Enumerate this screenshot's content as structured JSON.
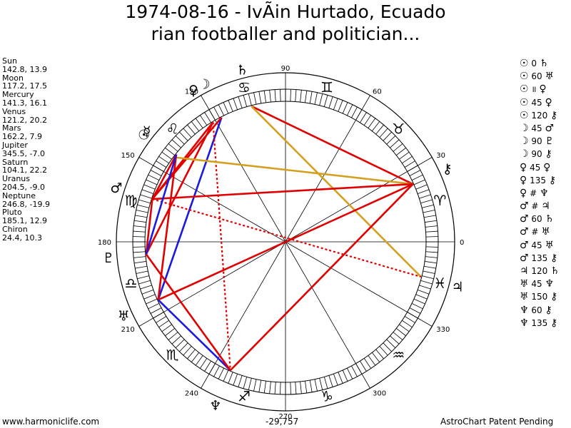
{
  "title_line1": "1974-08-16 - IvÃin Hurtado, Ecuado",
  "title_line2": "rian footballer and politician...",
  "planets": [
    {
      "name": "Sun",
      "coords": "142.8, 13.9",
      "glyph": "☉",
      "lon": 142.8
    },
    {
      "name": "Moon",
      "coords": "117.2, 17.5",
      "glyph": "☽",
      "lon": 117.2
    },
    {
      "name": "Mercury",
      "coords": "141.3, 16.1",
      "glyph": "☿",
      "lon": 141.3
    },
    {
      "name": "Venus",
      "coords": "121.2, 20.2",
      "glyph": "♀",
      "lon": 121.2
    },
    {
      "name": "Mars",
      "coords": "162.2, 7.9",
      "glyph": "♂",
      "lon": 162.2
    },
    {
      "name": "Jupiter",
      "coords": "345.5, -7.0",
      "glyph": "♃",
      "lon": 345.5
    },
    {
      "name": "Saturn",
      "coords": "104.1, 22.2",
      "glyph": "♄",
      "lon": 104.1
    },
    {
      "name": "Uranus",
      "coords": "204.5, -9.0",
      "glyph": "♅",
      "lon": 204.5
    },
    {
      "name": "Neptune",
      "coords": "246.8, -19.9",
      "glyph": "♆",
      "lon": 246.8
    },
    {
      "name": "Pluto",
      "coords": "185.1, 12.9",
      "glyph": "♇",
      "lon": 185.1
    },
    {
      "name": "Chiron",
      "coords": "24.4, 10.3",
      "glyph": "⚷",
      "lon": 24.4
    }
  ],
  "aspects": [
    {
      "p1": "☉",
      "val": "0",
      "p2": "♄"
    },
    {
      "p1": "☉",
      "val": "60",
      "p2": "♅"
    },
    {
      "p1": "☉",
      "val": "॥",
      "p2": "♀"
    },
    {
      "p1": "☉",
      "val": "45",
      "p2": "♀"
    },
    {
      "p1": "☉",
      "val": "120",
      "p2": "⚷"
    },
    {
      "p1": "☽",
      "val": "45",
      "p2": "♂"
    },
    {
      "p1": "☽",
      "val": "90",
      "p2": "♇"
    },
    {
      "p1": "☽",
      "val": "90",
      "p2": "⚷"
    },
    {
      "p1": "♀",
      "val": "45",
      "p2": "♀"
    },
    {
      "p1": "♀",
      "val": "135",
      "p2": "⚷"
    },
    {
      "p1": "♀",
      "val": "#",
      "p2": "♆"
    },
    {
      "p1": "♂",
      "val": "#",
      "p2": "♃"
    },
    {
      "p1": "♂",
      "val": "60",
      "p2": "♄"
    },
    {
      "p1": "♂",
      "val": "#",
      "p2": "♅"
    },
    {
      "p1": "♂",
      "val": "45",
      "p2": "♅"
    },
    {
      "p1": "♂",
      "val": "135",
      "p2": "⚷"
    },
    {
      "p1": "♃",
      "val": "120",
      "p2": "♄"
    },
    {
      "p1": "♅",
      "val": "45",
      "p2": "♆"
    },
    {
      "p1": "♅",
      "val": "150",
      "p2": "⚷"
    },
    {
      "p1": "♆",
      "val": "60",
      "p2": "⚷"
    },
    {
      "p1": "♆",
      "val": "135",
      "p2": "⚷"
    }
  ],
  "degree_labels": [
    "0",
    "30",
    "60",
    "90",
    "120",
    "150",
    "180",
    "210",
    "240",
    "270",
    "300",
    "330"
  ],
  "signs": [
    {
      "glyph": "♈",
      "lon": 15
    },
    {
      "glyph": "♉",
      "lon": 45
    },
    {
      "glyph": "♊",
      "lon": 75
    },
    {
      "glyph": "♋",
      "lon": 105
    },
    {
      "glyph": "♌",
      "lon": 135
    },
    {
      "glyph": "♍",
      "lon": 165
    },
    {
      "glyph": "♎",
      "lon": 195
    },
    {
      "glyph": "♏",
      "lon": 225
    },
    {
      "glyph": "♐",
      "lon": 255
    },
    {
      "glyph": "♑",
      "lon": 285
    },
    {
      "glyph": "♒",
      "lon": 315
    },
    {
      "glyph": "♓",
      "lon": 345
    }
  ],
  "aspect_lines": [
    {
      "a": 104.1,
      "b": 24.4,
      "color": "#e00000",
      "dash": false
    },
    {
      "a": 104.1,
      "b": 345.5,
      "color": "#d4a020",
      "dash": false
    },
    {
      "a": 117.2,
      "b": 204.5,
      "color": "#1a1ae0",
      "dash": false
    },
    {
      "a": 117.2,
      "b": 162.2,
      "color": "#e00000",
      "dash": false
    },
    {
      "a": 121.2,
      "b": 162.2,
      "color": "#e00000",
      "dash": false
    },
    {
      "a": 121.2,
      "b": 185.1,
      "color": "#e00000",
      "dash": false
    },
    {
      "a": 121.2,
      "b": 246.8,
      "color": "#e00000",
      "dash": true
    },
    {
      "a": 142.8,
      "b": 24.4,
      "color": "#d4a020",
      "dash": false
    },
    {
      "a": 141.3,
      "b": 204.5,
      "color": "#e00000",
      "dash": false
    },
    {
      "a": 141.3,
      "b": 162.2,
      "color": "#e00000",
      "dash": false
    },
    {
      "a": 162.2,
      "b": 24.4,
      "color": "#e00000",
      "dash": false
    },
    {
      "a": 162.2,
      "b": 345.5,
      "color": "#e00000",
      "dash": true
    },
    {
      "a": 162.2,
      "b": 185.1,
      "color": "#e00000",
      "dash": false
    },
    {
      "a": 204.5,
      "b": 24.4,
      "color": "#e00000",
      "dash": false
    },
    {
      "a": 246.8,
      "b": 24.4,
      "color": "#e00000",
      "dash": false
    },
    {
      "a": 246.8,
      "b": 204.5,
      "color": "#1a1ae0",
      "dash": false
    },
    {
      "a": 246.8,
      "b": 185.1,
      "color": "#e00000",
      "dash": false
    },
    {
      "a": 141.3,
      "b": 185.1,
      "color": "#1a1ae0",
      "dash": false
    }
  ],
  "colors": {
    "hard": "#e00000",
    "soft": "#1a1ae0",
    "opposition": "#d4a020"
  },
  "footer_left": "www.harmoniclife.com",
  "footer_center": "-29,757",
  "footer_right": "AstroChart Patent Pending"
}
